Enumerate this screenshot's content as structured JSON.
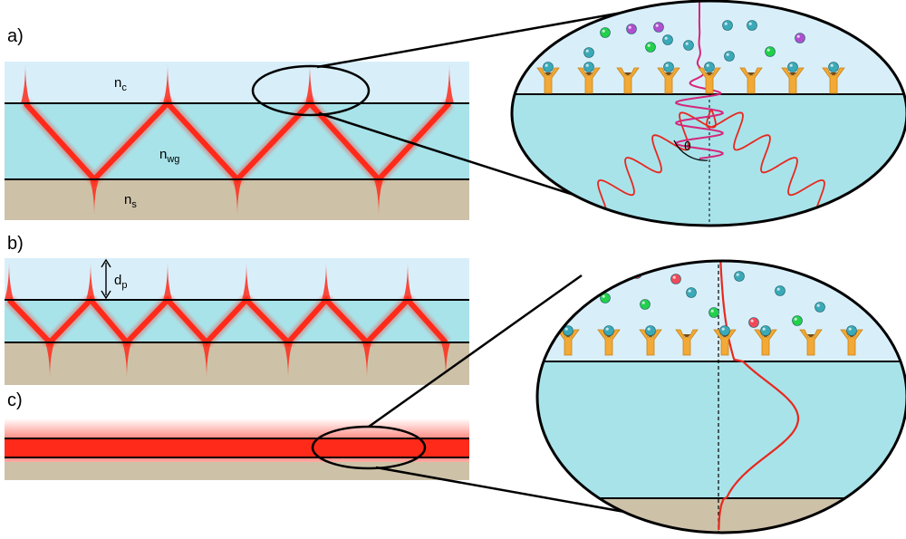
{
  "colors": {
    "cover": "#d8effa",
    "guide": "#a8e3ea",
    "substrate": "#cdc2a8",
    "ray": "#ff2a1a",
    "outline": "#000000",
    "wave": "#e8281e",
    "evanescent": "#d6267a",
    "receptor": "#f2a935",
    "particle_teal": "#3aa9b8",
    "particle_green": "#22d04a",
    "particle_purple": "#b04fcf",
    "particle_red": "#f04a5a"
  },
  "panel_labels": {
    "a": "a)",
    "b": "b)",
    "c": "c)"
  },
  "refractive": {
    "cover_base": "n",
    "cover_sub": "c",
    "guide_base": "n",
    "guide_sub": "wg",
    "substrate_base": "n",
    "substrate_sub": "s"
  },
  "penetration": {
    "base": "d",
    "sub": "p"
  },
  "angle_label": "θ",
  "icons": {
    "receptor": "y-receptor-icon",
    "analyte": "sphere-particle-icon"
  }
}
